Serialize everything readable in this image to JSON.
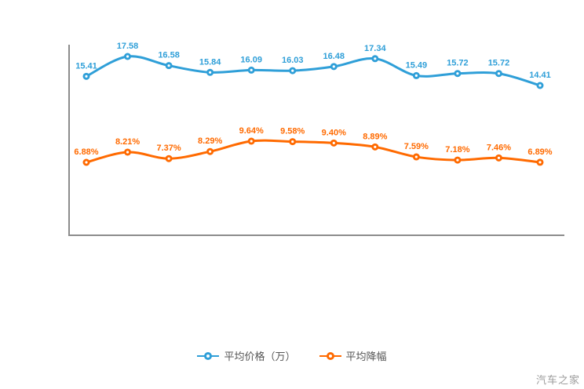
{
  "chart_data": {
    "type": "line",
    "title": "",
    "xlabel": "",
    "ylabel": "",
    "grid": false,
    "legend_position": "bottom",
    "x_labels": [],
    "series": [
      {
        "name": "平均价格（万）",
        "color": "#2f9fd8",
        "unit": "万",
        "values": [
          15.41,
          17.58,
          16.58,
          15.84,
          16.09,
          16.03,
          16.48,
          17.34,
          15.49,
          15.72,
          15.72,
          14.41
        ],
        "labels": [
          "15.41",
          "17.58",
          "16.58",
          "15.84",
          "16.09",
          "16.03",
          "16.48",
          "17.34",
          "15.49",
          "15.72",
          "15.72",
          "14.41"
        ]
      },
      {
        "name": "平均降幅",
        "color": "#ff6a00",
        "unit": "%",
        "values": [
          6.88,
          8.21,
          7.37,
          8.29,
          9.64,
          9.58,
          9.4,
          8.89,
          7.59,
          7.18,
          7.46,
          6.89
        ],
        "labels": [
          "6.88%",
          "8.21%",
          "7.37%",
          "8.29%",
          "9.64%",
          "9.58%",
          "9.40%",
          "8.89%",
          "7.59%",
          "7.18%",
          "7.46%",
          "6.89%"
        ]
      }
    ]
  },
  "colors": {
    "axis": "#8c8c8c",
    "background": "#ffffff"
  },
  "watermark": "汽车之家"
}
